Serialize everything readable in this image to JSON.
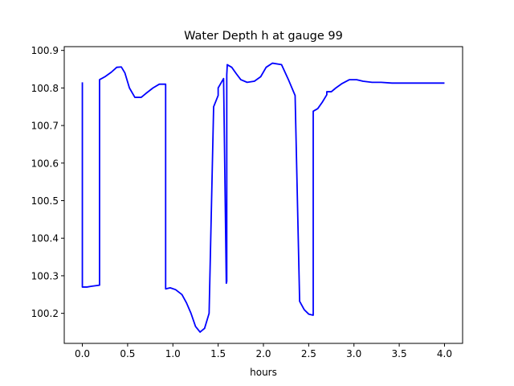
{
  "chart_data": {
    "type": "line",
    "title": "Water Depth h at gauge 99",
    "xlabel": "hours",
    "ylabel": "",
    "xlim": [
      -0.2,
      4.2
    ],
    "ylim": [
      100.12,
      100.91
    ],
    "xticks": [
      0.0,
      0.5,
      1.0,
      1.5,
      2.0,
      2.5,
      3.0,
      3.5,
      4.0
    ],
    "xtick_labels": [
      "0.0",
      "0.5",
      "1.0",
      "1.5",
      "2.0",
      "2.5",
      "3.0",
      "3.5",
      "4.0"
    ],
    "yticks": [
      100.2,
      100.3,
      100.4,
      100.5,
      100.6,
      100.7,
      100.8,
      100.9
    ],
    "ytick_labels": [
      "100.2",
      "100.3",
      "100.4",
      "100.5",
      "100.6",
      "100.7",
      "100.8",
      "100.9"
    ],
    "grid": false,
    "legend": "none",
    "colors": {
      "series": "#0000ff",
      "axes": "#000000",
      "background": "#ffffff"
    },
    "series": [
      {
        "x": [
          0.0,
          0.0,
          0.05,
          0.1,
          0.19,
          0.19,
          0.25,
          0.32,
          0.38,
          0.43,
          0.47,
          0.52,
          0.58,
          0.65,
          0.7,
          0.78,
          0.85,
          0.92,
          0.92,
          0.97,
          1.03,
          1.1,
          1.15,
          1.2,
          1.25,
          1.3,
          1.35,
          1.4,
          1.45,
          1.5,
          1.5,
          1.56,
          1.59,
          1.595,
          1.595,
          1.6,
          1.6,
          1.65,
          1.7,
          1.75,
          1.82,
          1.9,
          1.97,
          2.03,
          2.1,
          2.2,
          2.28,
          2.35,
          2.4,
          2.45,
          2.5,
          2.55,
          2.55,
          2.6,
          2.65,
          2.7,
          2.7,
          2.75,
          2.8,
          2.87,
          2.95,
          3.03,
          3.1,
          3.2,
          3.3,
          3.42,
          3.55,
          3.7,
          3.85,
          4.0
        ],
        "y": [
          100.815,
          100.27,
          100.27,
          100.272,
          100.275,
          100.822,
          100.83,
          100.842,
          100.855,
          100.856,
          100.84,
          100.8,
          100.775,
          100.775,
          100.785,
          100.8,
          100.81,
          100.81,
          100.265,
          100.268,
          100.263,
          100.25,
          100.228,
          100.2,
          100.165,
          100.15,
          100.16,
          100.2,
          100.75,
          100.78,
          100.8,
          100.825,
          100.28,
          100.285,
          100.835,
          100.858,
          100.862,
          100.855,
          100.838,
          100.822,
          100.815,
          100.818,
          100.83,
          100.855,
          100.866,
          100.862,
          100.82,
          100.78,
          100.232,
          100.21,
          100.198,
          100.195,
          100.738,
          100.745,
          100.762,
          100.782,
          100.79,
          100.79,
          100.8,
          100.812,
          100.822,
          100.822,
          100.818,
          100.815,
          100.815,
          100.813,
          100.813,
          100.813,
          100.813,
          100.813
        ]
      }
    ]
  }
}
